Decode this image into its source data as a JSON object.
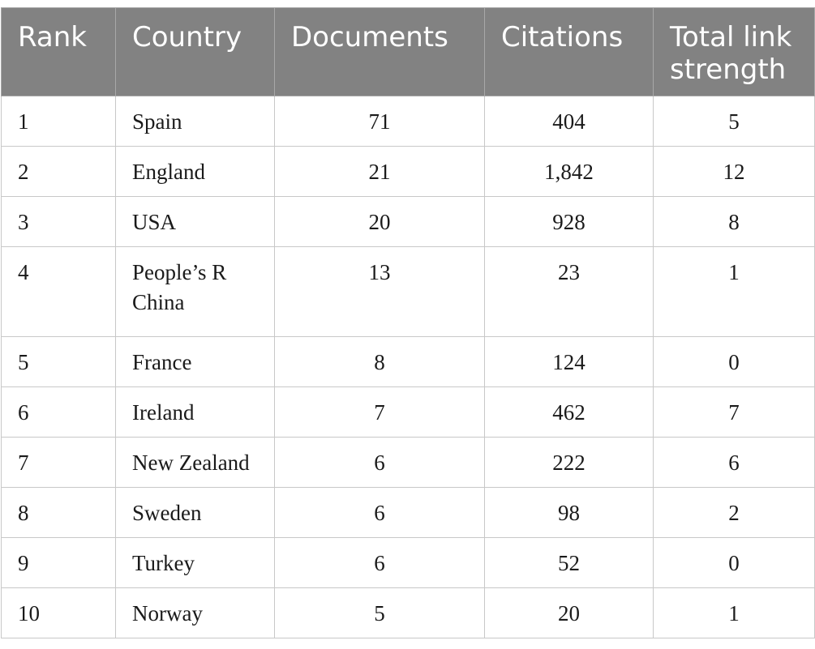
{
  "table": {
    "headers": [
      "Rank",
      "Country",
      "Documents",
      "Citations",
      "Total link strength"
    ],
    "rows": [
      {
        "rank": "1",
        "country": "Spain",
        "documents": "71",
        "citations": "404",
        "link_strength": "5"
      },
      {
        "rank": "2",
        "country": "England",
        "documents": "21",
        "citations": "1,842",
        "link_strength": "12"
      },
      {
        "rank": "3",
        "country": "USA",
        "documents": "20",
        "citations": "928",
        "link_strength": "8"
      },
      {
        "rank": "4",
        "country": "People’s R China",
        "documents": "13",
        "citations": "23",
        "link_strength": "1"
      },
      {
        "rank": "5",
        "country": "France",
        "documents": "8",
        "citations": "124",
        "link_strength": "0"
      },
      {
        "rank": "6",
        "country": "Ireland",
        "documents": "7",
        "citations": "462",
        "link_strength": "7"
      },
      {
        "rank": "7",
        "country": "New Zealand",
        "documents": "6",
        "citations": "222",
        "link_strength": "6"
      },
      {
        "rank": "8",
        "country": "Sweden",
        "documents": "6",
        "citations": "98",
        "link_strength": "2"
      },
      {
        "rank": "9",
        "country": "Turkey",
        "documents": "6",
        "citations": "52",
        "link_strength": "0"
      },
      {
        "rank": "10",
        "country": "Norway",
        "documents": "5",
        "citations": "20",
        "link_strength": "1"
      }
    ]
  }
}
